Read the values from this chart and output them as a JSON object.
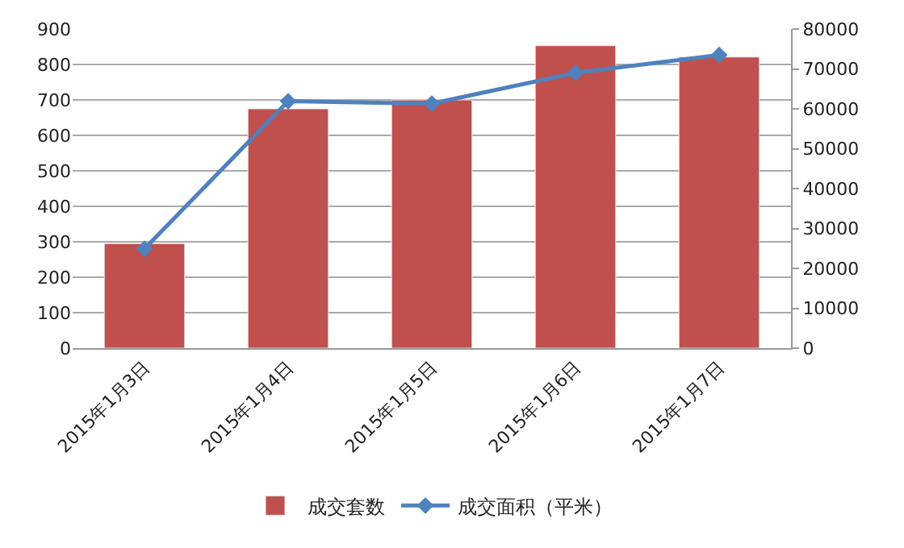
{
  "chart_data": {
    "type": "bar",
    "categories": [
      "2015年1月3日",
      "2015年1月4日",
      "2015年1月5日",
      "2015年1月6日",
      "2015年1月7日"
    ],
    "series": [
      {
        "name": "成交套数",
        "color": "#c0504d",
        "values": [
          295,
          675,
          700,
          853,
          821
        ]
      },
      {
        "name": "成交面积（平米）",
        "type": "line",
        "axis": "y2",
        "color": "#4f81bd",
        "marker": "diamond",
        "values": [
          24900,
          61900,
          61300,
          69000,
          73500
        ]
      }
    ],
    "ylim": [
      0,
      900
    ],
    "yticks": [
      0,
      100,
      200,
      300,
      400,
      500,
      600,
      700,
      800,
      900
    ],
    "y2lim": [
      0,
      80000
    ],
    "y2ticks": [
      0,
      10000,
      20000,
      30000,
      40000,
      50000,
      60000,
      70000,
      80000
    ],
    "grid": "y",
    "legend": "bottom"
  }
}
